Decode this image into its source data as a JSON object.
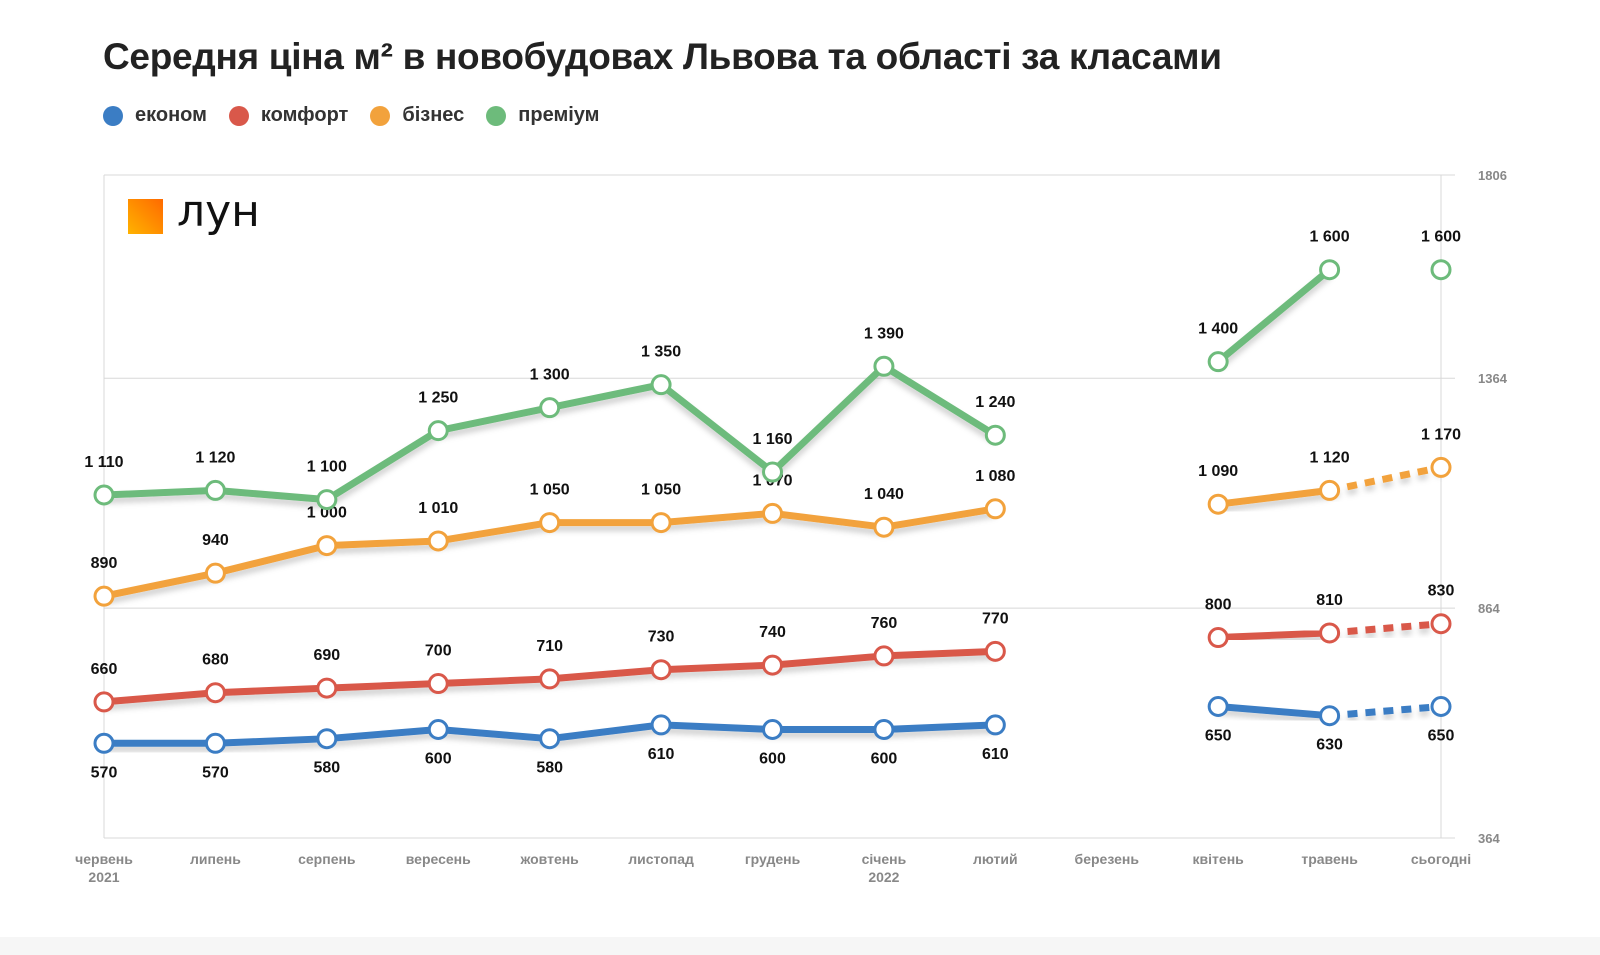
{
  "chart_data": {
    "type": "line",
    "title": "Середня ціна м² в новобудовах Львова та області за класами",
    "categories": [
      "червень\n2021",
      "липень",
      "серпень",
      "вересень",
      "жовтень",
      "листопад",
      "грудень",
      "січень\n2022",
      "лютий",
      "березень",
      "квітень",
      "травень",
      "сьогодні"
    ],
    "yticks": [
      364,
      864,
      1364,
      1806
    ],
    "ylim": [
      364,
      1806
    ],
    "y_axis_position": "right",
    "grid": true,
    "legend_placement": "top-left",
    "dashed_last_segment": true,
    "series": [
      {
        "name": "економ",
        "color": "#3b7dc4",
        "label_position": "below",
        "values": [
          570,
          570,
          580,
          600,
          580,
          610,
          600,
          600,
          610,
          null,
          650,
          630,
          650
        ]
      },
      {
        "name": "комфорт",
        "color": "#d9584a",
        "label_position": "above",
        "values": [
          660,
          680,
          690,
          700,
          710,
          730,
          740,
          760,
          770,
          null,
          800,
          810,
          830
        ]
      },
      {
        "name": "бізнес",
        "color": "#f2a23c",
        "label_position": "above",
        "values": [
          890,
          940,
          1000,
          1010,
          1050,
          1050,
          1070,
          1040,
          1080,
          null,
          1090,
          1120,
          1170
        ]
      },
      {
        "name": "преміум",
        "color": "#6dbb7b",
        "label_position": "above",
        "values": [
          1110,
          1120,
          1100,
          1250,
          1300,
          1350,
          1160,
          1390,
          1240,
          null,
          1400,
          1600,
          1600
        ]
      }
    ]
  },
  "logo": {
    "text": "лун"
  }
}
